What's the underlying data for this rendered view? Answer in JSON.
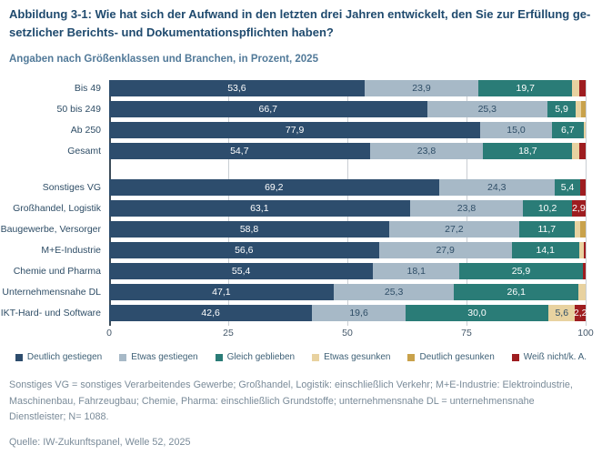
{
  "header": {
    "title_line1": "Abbildung 3-1: Wie hat sich der Aufwand in den letzten drei Jahren entwickelt, den Sie zur Erfüllung ge-",
    "title_line2": "setzlicher Berichts- und Dokumentationspflichten haben?",
    "subtitle": "Angaben nach Größenklassen und Branchen, in Prozent, 2025"
  },
  "chart_data": {
    "type": "bar",
    "orientation": "horizontal-stacked",
    "title": "Abbildung 3-1: Wie hat sich der Aufwand in den letzten drei Jahren entwickelt, den Sie zur Erfüllung gesetzlicher Berichts- und Dokumentationspflichten haben?",
    "subtitle": "Angaben nach Größenklassen und Branchen, in Prozent, 2025",
    "xlabel": "",
    "ylabel": "",
    "xlim": [
      0,
      100
    ],
    "x_ticks": [
      0,
      25,
      50,
      75,
      100
    ],
    "grid": "vertical",
    "legend_position": "bottom",
    "value_label_min": 2.2,
    "series": [
      {
        "name": "Deutlich gestiegen",
        "color": "#2d4d6d",
        "text_color": "#ffffff"
      },
      {
        "name": "Etwas gestiegen",
        "color": "#a7b9c7",
        "text_color": "#2e4d66"
      },
      {
        "name": "Gleich geblieben",
        "color": "#2a7c77",
        "text_color": "#ffffff"
      },
      {
        "name": "Etwas gesunken",
        "color": "#e8d2a0",
        "text_color": "#2e4d66"
      },
      {
        "name": "Deutlich gesunken",
        "color": "#c9a24b",
        "text_color": "#2e4d66"
      },
      {
        "name": "Weiß nicht/k. A.",
        "color": "#9e1d20",
        "text_color": "#ffffff"
      }
    ],
    "rows": [
      {
        "label": "Bis 49",
        "group_start": false,
        "values": [
          53.6,
          23.9,
          19.7,
          1.5,
          0,
          1.3
        ]
      },
      {
        "label": "50 bis 249",
        "group_start": false,
        "values": [
          66.7,
          25.3,
          5.9,
          1.2,
          0.9,
          0
        ]
      },
      {
        "label": "Ab 250",
        "group_start": false,
        "values": [
          77.9,
          15.0,
          6.7,
          0.4,
          0,
          0
        ]
      },
      {
        "label": "Gesamt",
        "group_start": false,
        "values": [
          54.7,
          23.8,
          18.7,
          1.5,
          0,
          1.3
        ]
      },
      {
        "label": "Sonstiges VG",
        "group_start": true,
        "values": [
          69.2,
          24.3,
          5.4,
          0,
          0,
          1.1
        ]
      },
      {
        "label": "Großhandel, Logistik",
        "group_start": false,
        "values": [
          63.1,
          23.8,
          10.2,
          0,
          0,
          2.9
        ]
      },
      {
        "label": "Baugewerbe, Versorger",
        "group_start": false,
        "values": [
          58.8,
          27.2,
          11.7,
          1.2,
          1.1,
          0
        ]
      },
      {
        "label": "M+E-Industrie",
        "group_start": false,
        "values": [
          56.6,
          27.9,
          14.1,
          1.0,
          0,
          0.4
        ]
      },
      {
        "label": "Chemie und Pharma",
        "group_start": false,
        "values": [
          55.4,
          18.1,
          25.9,
          0,
          0,
          0.6
        ]
      },
      {
        "label": "Unternehmensnahe DL",
        "group_start": false,
        "values": [
          47.1,
          25.3,
          26.1,
          1.5,
          0,
          0
        ]
      },
      {
        "label": "IKT-Hard- und Software",
        "group_start": false,
        "values": [
          42.6,
          19.6,
          30.0,
          5.6,
          0,
          2.2
        ]
      }
    ]
  },
  "footnote": "Sonstiges VG = sonstiges Verarbeitendes Gewerbe; Großhandel, Logistik: einschließlich Verkehr; M+E-Industrie: Elektroindustrie, Maschinenbau, Fahrzeugbau; Chemie, Pharma: einschließlich Grundstoffe; unternehmensnahe DL = unternehmensnahe Dienstleister; N= 1088.",
  "source": "Quelle: IW-Zukunftspanel, Welle 52, 2025"
}
